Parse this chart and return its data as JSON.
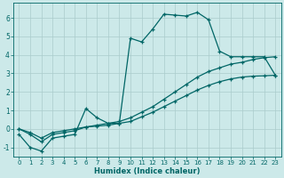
{
  "xlabel": "Humidex (Indice chaleur)",
  "xlim": [
    -0.5,
    23.5
  ],
  "ylim": [
    -1.5,
    6.8
  ],
  "yticks": [
    -1,
    0,
    1,
    2,
    3,
    4,
    5,
    6
  ],
  "xticks": [
    0,
    1,
    2,
    3,
    4,
    5,
    6,
    7,
    8,
    9,
    10,
    11,
    12,
    13,
    14,
    15,
    16,
    17,
    18,
    19,
    20,
    21,
    22,
    23
  ],
  "bg_color": "#cce9e9",
  "grid_color": "#aacccc",
  "line_color": "#006666",
  "line1_x": [
    0,
    1,
    2,
    3,
    4,
    5,
    6,
    7,
    8,
    9,
    10,
    11,
    12,
    13,
    14,
    15,
    16,
    17,
    18,
    19,
    20,
    21,
    22,
    23
  ],
  "line1_y": [
    -0.3,
    -1.0,
    -1.2,
    -0.5,
    -0.4,
    -0.3,
    1.1,
    0.6,
    0.3,
    0.3,
    4.9,
    4.7,
    5.4,
    6.2,
    6.15,
    6.1,
    6.3,
    5.9,
    4.2,
    3.9,
    3.9,
    3.9,
    3.9,
    2.9
  ],
  "line2_x": [
    0,
    1,
    2,
    3,
    4,
    5,
    6,
    7,
    8,
    9,
    10,
    11,
    12,
    13,
    14,
    15,
    16,
    17,
    18,
    19,
    20,
    21,
    22,
    23
  ],
  "line2_y": [
    0.0,
    -0.3,
    -0.7,
    -0.3,
    -0.2,
    -0.1,
    0.1,
    0.2,
    0.3,
    0.4,
    0.6,
    0.9,
    1.2,
    1.6,
    2.0,
    2.4,
    2.8,
    3.1,
    3.3,
    3.5,
    3.6,
    3.75,
    3.85,
    3.9
  ],
  "line3_x": [
    0,
    1,
    2,
    3,
    4,
    5,
    6,
    7,
    8,
    9,
    10,
    11,
    12,
    13,
    14,
    15,
    16,
    17,
    18,
    19,
    20,
    21,
    22,
    23
  ],
  "line3_y": [
    0.0,
    -0.2,
    -0.5,
    -0.2,
    -0.1,
    0.0,
    0.1,
    0.15,
    0.2,
    0.3,
    0.4,
    0.65,
    0.9,
    1.2,
    1.5,
    1.8,
    2.1,
    2.35,
    2.55,
    2.7,
    2.8,
    2.85,
    2.87,
    2.9
  ]
}
